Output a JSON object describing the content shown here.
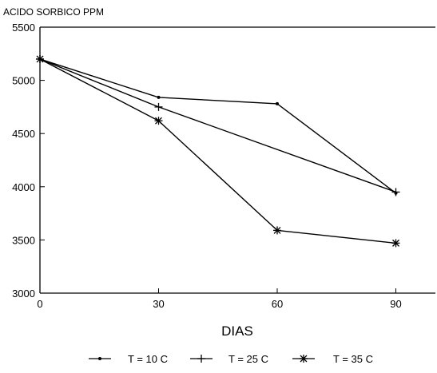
{
  "chart_data": {
    "type": "line",
    "ylabel": "ACIDO SORBICO PPM",
    "xlabel": "DIAS",
    "x": [
      0,
      30,
      60,
      90
    ],
    "xticks": [
      "0",
      "30",
      "60",
      "90"
    ],
    "yticks": [
      "3000",
      "3500",
      "4000",
      "4500",
      "5000",
      "5500"
    ],
    "xlim": [
      0,
      100
    ],
    "ylim": [
      3000,
      5500
    ],
    "grid": false,
    "legend_position": "bottom",
    "series": [
      {
        "name": "T = 10 C",
        "marker": "dot",
        "values": [
          5200,
          4840,
          4780,
          3940
        ]
      },
      {
        "name": "T = 25 C",
        "marker": "plus",
        "values": [
          5200,
          4750,
          null,
          3950
        ]
      },
      {
        "name": "T = 35 C",
        "marker": "star",
        "values": [
          5200,
          4620,
          3590,
          3470
        ]
      }
    ]
  }
}
